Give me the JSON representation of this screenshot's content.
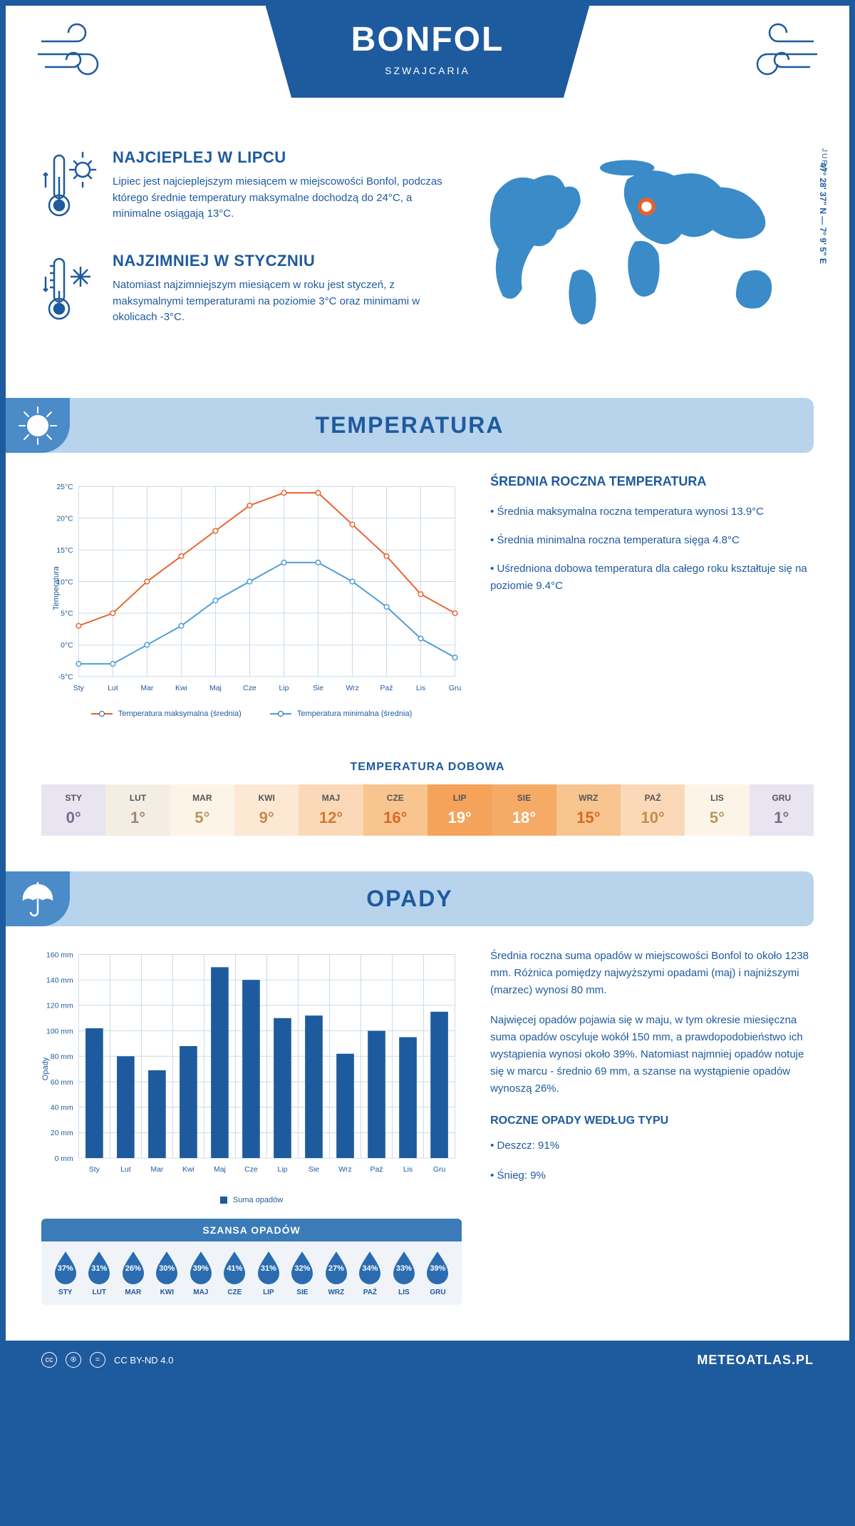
{
  "header": {
    "title": "BONFOL",
    "subtitle": "SZWAJCARIA"
  },
  "coords": "47° 28' 37\" N — 7° 9' 5\" E",
  "region": "JURA",
  "facts": {
    "warm": {
      "title": "NAJCIEPLEJ W LIPCU",
      "text": "Lipiec jest najcieplejszym miesiącem w miejscowości Bonfol, podczas którego średnie temperatury maksymalne dochodzą do 24°C, a minimalne osiągają 13°C."
    },
    "cold": {
      "title": "NAJZIMNIEJ W STYCZNIU",
      "text": "Natomiast najzimniejszym miesiącem w roku jest styczeń, z maksymalnymi temperaturami na poziomie 3°C oraz minimami w okolicach -3°C."
    }
  },
  "sections": {
    "temperature": "TEMPERATURA",
    "precipitation": "OPADY"
  },
  "temp_chart": {
    "type": "line",
    "months": [
      "Sty",
      "Lut",
      "Mar",
      "Kwi",
      "Maj",
      "Cze",
      "Lip",
      "Sie",
      "Wrz",
      "Paź",
      "Lis",
      "Gru"
    ],
    "series": {
      "max": {
        "label": "Temperatura maksymalna (średnia)",
        "color": "#e8602c",
        "values": [
          3,
          5,
          10,
          14,
          18,
          22,
          24,
          24,
          19,
          14,
          8,
          5
        ]
      },
      "min": {
        "label": "Temperatura minimalna (średnia)",
        "color": "#4a9bd8",
        "values": [
          -3,
          -3,
          0,
          3,
          7,
          10,
          13,
          13,
          10,
          6,
          1,
          -2
        ]
      }
    },
    "ylabel": "Temperatura",
    "ymin": -5,
    "ymax": 25,
    "ystep": 5,
    "grid_color": "#c8dae8",
    "y_tick_labels": [
      "-5°C",
      "0°C",
      "5°C",
      "10°C",
      "15°C",
      "20°C",
      "25°C"
    ]
  },
  "temp_info": {
    "title": "ŚREDNIA ROCZNA TEMPERATURA",
    "bullets": [
      "Średnia maksymalna roczna temperatura wynosi 13.9°C",
      "Średnia minimalna roczna temperatura sięga 4.8°C",
      "Uśredniona dobowa temperatura dla całego roku kształtuje się na poziomie 9.4°C"
    ]
  },
  "daily_temp": {
    "title": "TEMPERATURA DOBOWA",
    "months": [
      "STY",
      "LUT",
      "MAR",
      "KWI",
      "MAJ",
      "CZE",
      "LIP",
      "SIE",
      "WRZ",
      "PAŹ",
      "LIS",
      "GRU"
    ],
    "values": [
      "0°",
      "1°",
      "5°",
      "9°",
      "12°",
      "16°",
      "19°",
      "18°",
      "15°",
      "10°",
      "5°",
      "1°"
    ],
    "bg_colors": [
      "#e8e4f0",
      "#f3ede4",
      "#fdf4e8",
      "#fde8d4",
      "#fbd9b8",
      "#f8c590",
      "#f5a35a",
      "#f5ab66",
      "#f8c590",
      "#fbd9b8",
      "#fdf4e8",
      "#e8e4f0"
    ],
    "text_colors": [
      "#7a6b8a",
      "#9a8870",
      "#b89560",
      "#c88a4a",
      "#d07a30",
      "#d86820",
      "#ffffff",
      "#ffffff",
      "#d86820",
      "#c88a4a",
      "#b89560",
      "#7a6b8a"
    ]
  },
  "precip_chart": {
    "type": "bar",
    "months": [
      "Sty",
      "Lut",
      "Mar",
      "Kwi",
      "Maj",
      "Cze",
      "Lip",
      "Sie",
      "Wrz",
      "Paź",
      "Lis",
      "Gru"
    ],
    "values": [
      102,
      80,
      69,
      88,
      150,
      140,
      110,
      112,
      82,
      100,
      95,
      115
    ],
    "ylabel": "Opady",
    "ymax": 160,
    "ystep": 20,
    "bar_color": "#1e5a9e",
    "grid_color": "#c8dae8",
    "legend": "Suma opadów"
  },
  "precip_info": {
    "p1": "Średnia roczna suma opadów w miejscowości Bonfol to około 1238 mm. Różnica pomiędzy najwyższymi opadami (maj) i najniższymi (marzec) wynosi 80 mm.",
    "p2": "Najwięcej opadów pojawia się w maju, w tym okresie miesięczna suma opadów oscyluje wokół 150 mm, a prawdopodobieństwo ich wystąpienia wynosi około 39%. Natomiast najmniej opadów notuje się w marcu - średnio 69 mm, a szanse na wystąpienie opadów wynoszą 26%.",
    "type_title": "ROCZNE OPADY WEDŁUG TYPU",
    "types": [
      "Deszcz: 91%",
      "Śnieg: 9%"
    ]
  },
  "chance": {
    "title": "SZANSA OPADÓW",
    "months": [
      "STY",
      "LUT",
      "MAR",
      "KWI",
      "MAJ",
      "CZE",
      "LIP",
      "SIE",
      "WRZ",
      "PAŹ",
      "LIS",
      "GRU"
    ],
    "values": [
      "37%",
      "31%",
      "26%",
      "30%",
      "39%",
      "41%",
      "31%",
      "32%",
      "27%",
      "34%",
      "33%",
      "39%"
    ],
    "drop_color": "#2b6cb0"
  },
  "footer": {
    "license": "CC BY-ND 4.0",
    "site": "METEOATLAS.PL"
  },
  "colors": {
    "primary": "#1e5a9e",
    "header_band": "#b8d4ed",
    "corner": "#4a8bc8"
  }
}
